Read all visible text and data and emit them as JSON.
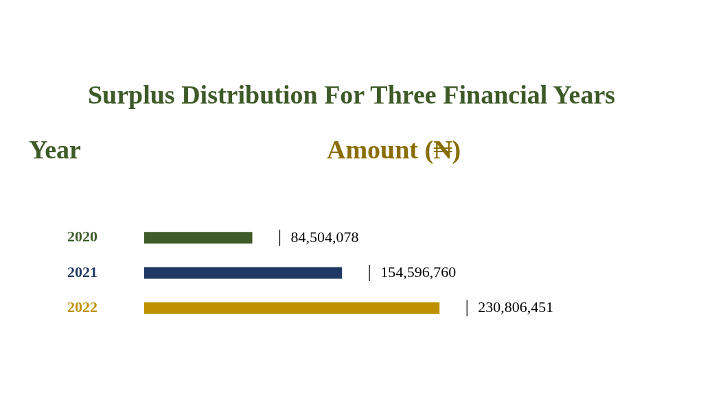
{
  "chart_data": {
    "type": "bar",
    "orientation": "horizontal",
    "title": "Surplus Distribution For Three Financial Years",
    "ylabel": "Year",
    "xlabel": "Amount (₦)",
    "categories": [
      "2020",
      "2021",
      "2022"
    ],
    "values": [
      84504078,
      154596760,
      230806451
    ],
    "colors": [
      "#3d5a27",
      "#1f3864",
      "#bf9000"
    ],
    "value_labels": [
      "84,504,078",
      "154,596,760",
      "230,806,451"
    ],
    "legend": false
  }
}
